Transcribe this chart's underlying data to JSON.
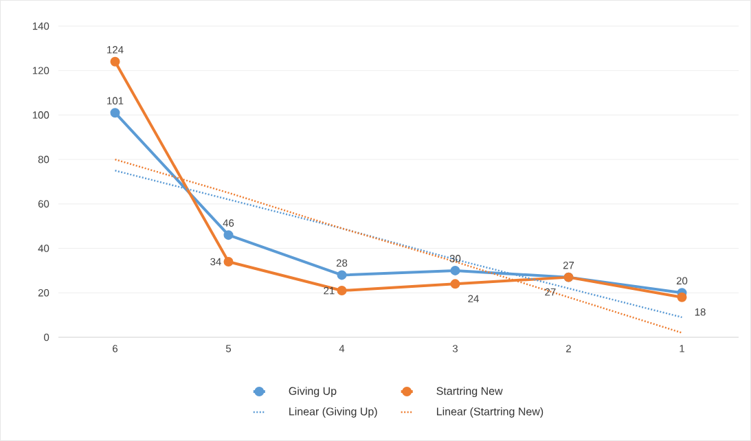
{
  "chart_data": {
    "type": "line",
    "categories": [
      "6",
      "5",
      "4",
      "3",
      "2",
      "1"
    ],
    "series": [
      {
        "name": "Giving Up",
        "color": "#5b9bd5",
        "values": [
          101,
          46,
          28,
          30,
          27,
          20
        ],
        "marker": "circle",
        "line_style": "solid",
        "data_labels": true
      },
      {
        "name": "Startring New",
        "color": "#ed7d31",
        "values": [
          124,
          34,
          21,
          24,
          27,
          18
        ],
        "marker": "circle",
        "line_style": "solid",
        "data_labels": true
      },
      {
        "name": "Linear (Giving Up)",
        "color": "#5b9bd5",
        "values": [
          75,
          62,
          49,
          35,
          22,
          9
        ],
        "marker": "none",
        "line_style": "dotted"
      },
      {
        "name": "Linear (Startring New)",
        "color": "#ed7d31",
        "values": [
          80,
          65,
          49,
          34,
          18,
          2
        ],
        "marker": "none",
        "line_style": "dotted"
      }
    ],
    "ylim": [
      0,
      140
    ],
    "yticks": [
      0,
      20,
      40,
      60,
      80,
      100,
      120,
      140
    ],
    "grid": "y",
    "legend": "bottom"
  }
}
